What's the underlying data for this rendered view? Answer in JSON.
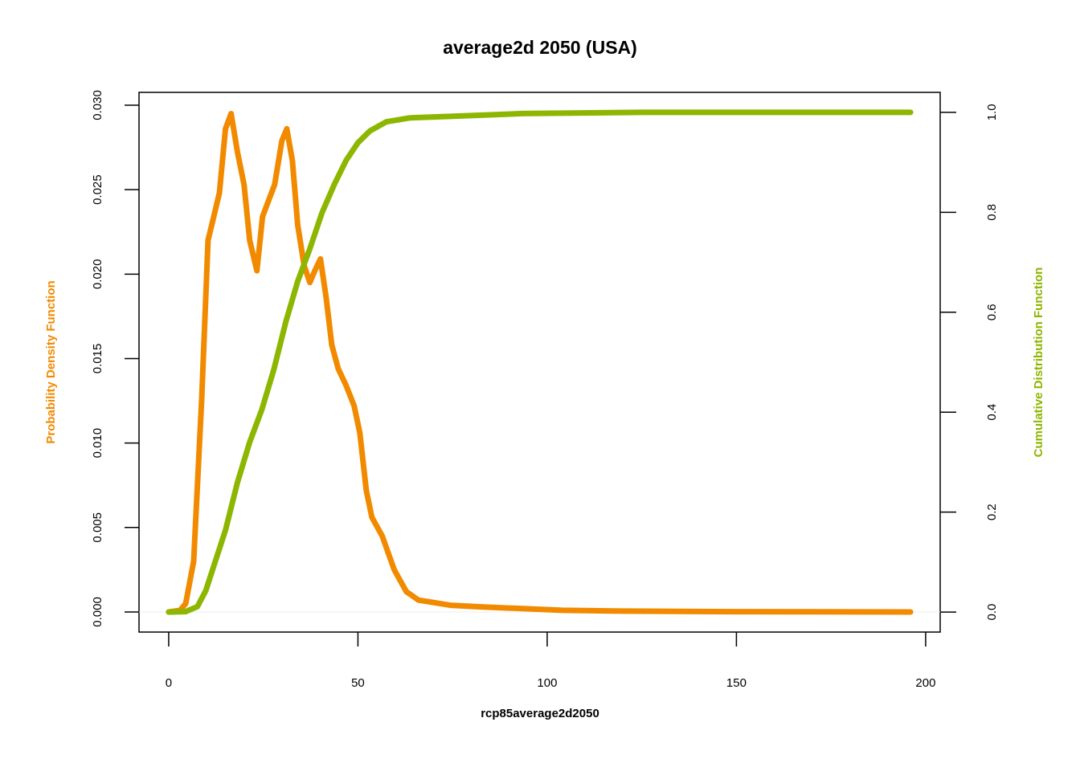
{
  "chart_data": {
    "type": "line",
    "title": "average2d 2050 (USA)",
    "xlabel": "rcp85average2d2050",
    "ylabel": "Probability Density Function",
    "y2label": "Cumulative Distribution Function",
    "xlim": [
      -7.84,
      203.84
    ],
    "ylim": [
      -0.00119,
      0.03076
    ],
    "y2lim": [
      -0.04,
      1.04
    ],
    "xticks": [
      0,
      50,
      100,
      150,
      200
    ],
    "yticks": [
      {
        "value": 0,
        "label": "0.000"
      },
      {
        "value": 0.005,
        "label": "0.005"
      },
      {
        "value": 0.01,
        "label": "0.010"
      },
      {
        "value": 0.015,
        "label": "0.015"
      },
      {
        "value": 0.02,
        "label": "0.020"
      },
      {
        "value": 0.025,
        "label": "0.025"
      },
      {
        "value": 0.03,
        "label": "0.030"
      }
    ],
    "y2ticks": [
      {
        "value": 0,
        "label": "0.0"
      },
      {
        "value": 0.2,
        "label": "0.2"
      },
      {
        "value": 0.4,
        "label": "0.4"
      },
      {
        "value": 0.6,
        "label": "0.6"
      },
      {
        "value": 0.8,
        "label": "0.8"
      },
      {
        "value": 1,
        "label": "1.0"
      }
    ],
    "series": [
      {
        "name": "Probability Density Function",
        "color": "#f28a00",
        "axis": "y",
        "x": [
          0,
          3,
          4.5,
          6.6,
          8.7,
          10.4,
          11.9,
          13.4,
          15,
          16.5,
          18.2,
          19.9,
          21.4,
          23.3,
          24.8,
          26.3,
          28,
          29.9,
          31.2,
          32.7,
          34.1,
          35.8,
          37.3,
          38.8,
          40.1,
          41.6,
          43.1,
          44.8,
          46.9,
          49,
          50.5,
          52.2,
          53.7,
          56.4,
          59.6,
          62.8,
          66,
          74.4,
          83,
          93.5,
          104,
          120,
          150,
          196
        ],
        "values": [
          0,
          0.0001,
          0.0005,
          0.003,
          0.0125,
          0.022,
          0.0234,
          0.0248,
          0.0286,
          0.0295,
          0.0272,
          0.0253,
          0.022,
          0.0202,
          0.0234,
          0.0243,
          0.0253,
          0.0279,
          0.0286,
          0.0267,
          0.0229,
          0.0205,
          0.0195,
          0.0203,
          0.0209,
          0.0186,
          0.0158,
          0.0144,
          0.0134,
          0.0122,
          0.0106,
          0.0072,
          0.0056,
          0.0045,
          0.0025,
          0.0012,
          0.0007,
          0.0004,
          0.0003,
          0.0002,
          0.0001,
          5e-05,
          2e-05,
          0
        ]
      },
      {
        "name": "Cumulative Distribution Function",
        "color": "#8db600",
        "axis": "y2",
        "x": [
          0,
          4.5,
          7.6,
          9.8,
          11.9,
          15,
          18.2,
          21.4,
          24.6,
          27.8,
          31,
          34.1,
          37.3,
          40.5,
          43.7,
          46.9,
          50,
          53.2,
          57.5,
          63.8,
          74.4,
          93.5,
          125,
          196
        ],
        "values": [
          0,
          0.001,
          0.011,
          0.043,
          0.092,
          0.164,
          0.26,
          0.34,
          0.405,
          0.486,
          0.582,
          0.662,
          0.727,
          0.799,
          0.855,
          0.904,
          0.939,
          0.963,
          0.981,
          0.989,
          0.992,
          0.9976,
          1,
          1
        ]
      }
    ]
  }
}
